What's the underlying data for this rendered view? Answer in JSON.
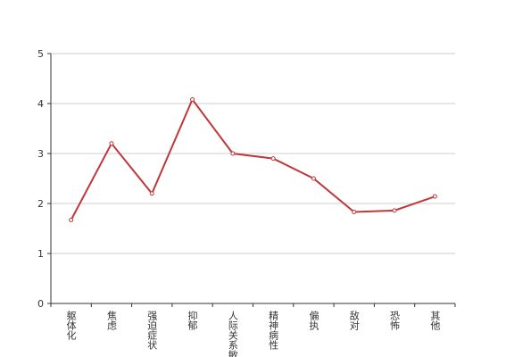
{
  "chart_data": {
    "type": "line",
    "categories": [
      "躯体化",
      "焦虑",
      "强迫症状",
      "抑郁",
      "人际关系敏感",
      "精神病性",
      "偏执",
      "敌对",
      "恐怖",
      "其他"
    ],
    "series": [
      {
        "color": "#c0373a",
        "values": [
          1.67,
          3.2,
          2.2,
          4.08,
          3.0,
          2.9,
          2.5,
          1.83,
          1.86,
          2.14
        ]
      }
    ],
    "ylim": [
      0,
      5
    ],
    "yticks": [
      0,
      1,
      2,
      3,
      4,
      5
    ],
    "grid": true
  }
}
